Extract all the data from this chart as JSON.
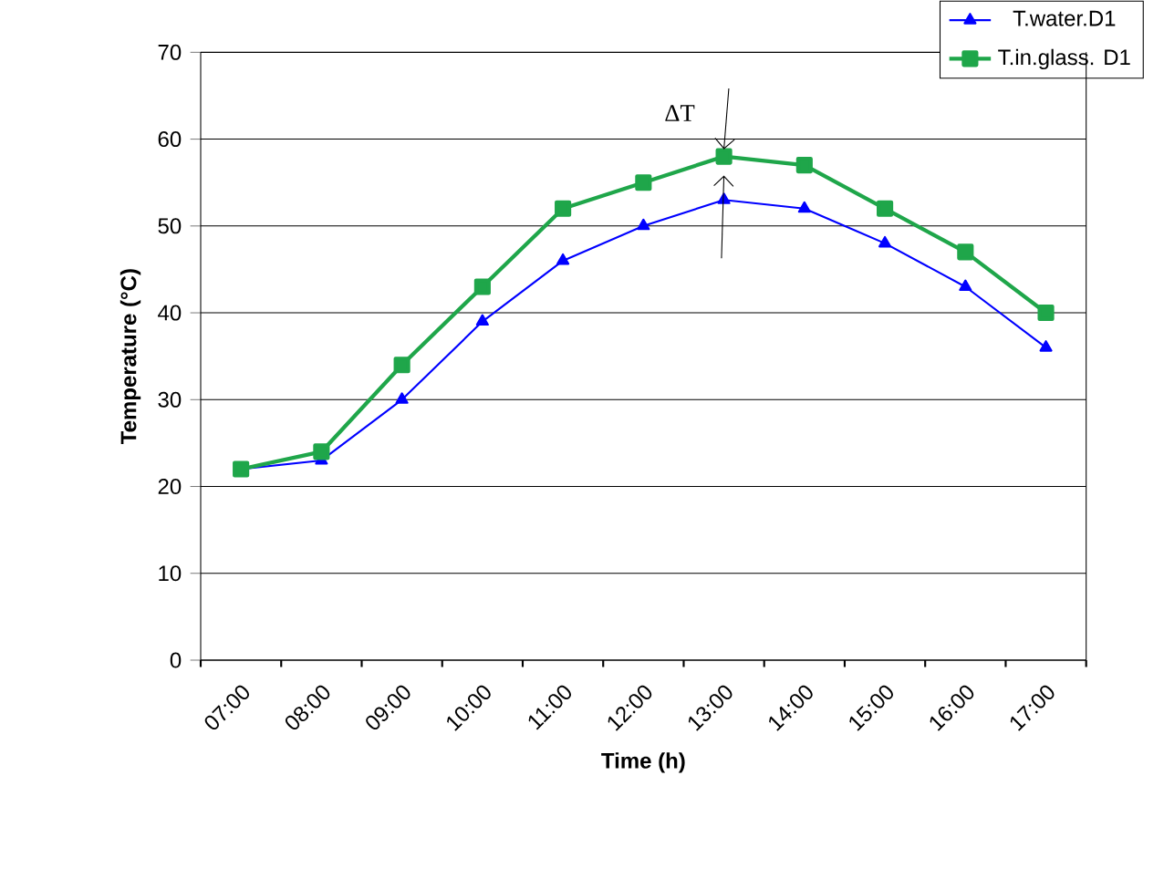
{
  "chart_data": {
    "type": "line",
    "xlabel": "Time (h)",
    "ylabel": "Temperature (°C)",
    "categories": [
      "07:00",
      "08:00",
      "09:00",
      "10:00",
      "11:00",
      "12:00",
      "13:00",
      "14:00",
      "15:00",
      "16:00",
      "17:00"
    ],
    "series": [
      {
        "name": "T.water.D1",
        "color": "#0000ff",
        "marker": "triangle",
        "values": [
          22,
          23,
          30,
          39,
          46,
          50,
          53,
          52,
          48,
          43,
          36
        ]
      },
      {
        "name": "T.in.glass. D1",
        "color": "#1fa64a",
        "marker": "square",
        "values": [
          22,
          24,
          34,
          43,
          52,
          55,
          58,
          57,
          52,
          47,
          40
        ]
      }
    ],
    "ylim": [
      0,
      70
    ],
    "yticks": [
      0,
      10,
      20,
      30,
      40,
      50,
      60,
      70
    ],
    "grid": "y",
    "legend": "top right",
    "line_style": "solid",
    "annotations": [
      {
        "text": "ΔT",
        "x": "13:00",
        "y": 58
      }
    ]
  }
}
